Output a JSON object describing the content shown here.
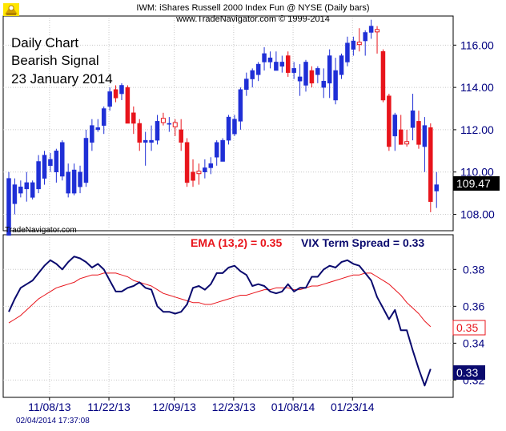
{
  "header": {
    "title": "IWM:  iShares Russell 2000 Index Fun @ NYSE  (Daily bars)",
    "subtitle": "www.TradeNavigator.com © 1999-2014",
    "logo_icon": "trade-navigator-logo-icon"
  },
  "annotation": {
    "line1": "Daily Chart",
    "line2": "Bearish Signal",
    "line3": "23 January 2014"
  },
  "watermark": "TradeNavigator.com",
  "timestamp": "02/04/2014  17:37:08",
  "colors": {
    "up": "#1f2fd6",
    "down": "#e8141b",
    "ema": "#e8141b",
    "vix": "#0a0a6e",
    "axis_text": "#000080",
    "grid": "#c8c8c8"
  },
  "chart_data": [
    {
      "type": "candlestick",
      "title": "",
      "y_ticks": [
        "116.00",
        "114.00",
        "112.00",
        "110.00",
        "108.00"
      ],
      "ylim": [
        107.3,
        117.3
      ],
      "last_price_label": "109.47",
      "x_tick_labels": [
        "11/08/13",
        "11/22/13",
        "12/09/13",
        "12/23/13",
        "01/08/14",
        "01/23/14"
      ],
      "x_tick_index": [
        2,
        12,
        23,
        33,
        43,
        53
      ],
      "candles": [
        {
          "o": 107.0,
          "h": 110.0,
          "l": 107.0,
          "c": 109.7
        },
        {
          "o": 108.5,
          "h": 109.7,
          "l": 108.0,
          "c": 109.4
        },
        {
          "o": 109.0,
          "h": 109.6,
          "l": 108.8,
          "c": 109.3
        },
        {
          "o": 109.2,
          "h": 110.0,
          "l": 108.6,
          "c": 109.5
        },
        {
          "o": 108.8,
          "h": 109.6,
          "l": 108.7,
          "c": 109.5
        },
        {
          "o": 109.2,
          "h": 110.8,
          "l": 109.0,
          "c": 110.5
        },
        {
          "o": 109.7,
          "h": 111.0,
          "l": 109.4,
          "c": 110.8
        },
        {
          "o": 110.3,
          "h": 110.9,
          "l": 110.0,
          "c": 110.6
        },
        {
          "o": 110.0,
          "h": 111.1,
          "l": 109.5,
          "c": 111.0
        },
        {
          "o": 109.8,
          "h": 111.5,
          "l": 109.6,
          "c": 111.4
        },
        {
          "o": 109.0,
          "h": 110.4,
          "l": 108.8,
          "c": 110.0
        },
        {
          "o": 109.0,
          "h": 110.4,
          "l": 108.9,
          "c": 110.1
        },
        {
          "o": 109.3,
          "h": 110.3,
          "l": 109.0,
          "c": 110.0
        },
        {
          "o": 109.5,
          "h": 112.0,
          "l": 109.3,
          "c": 111.6
        },
        {
          "o": 111.4,
          "h": 112.5,
          "l": 111.0,
          "c": 112.2
        },
        {
          "o": 112.0,
          "h": 112.5,
          "l": 111.9,
          "c": 112.1
        },
        {
          "o": 112.2,
          "h": 113.1,
          "l": 111.8,
          "c": 113.0
        },
        {
          "o": 113.1,
          "h": 114.0,
          "l": 112.9,
          "c": 113.8
        },
        {
          "o": 113.9,
          "h": 114.1,
          "l": 113.3,
          "c": 113.5
        },
        {
          "o": 113.7,
          "h": 114.2,
          "l": 113.4,
          "c": 114.1
        },
        {
          "o": 114.0,
          "h": 114.1,
          "l": 112.3,
          "c": 112.3
        },
        {
          "o": 112.8,
          "h": 113.1,
          "l": 111.8,
          "c": 112.3
        },
        {
          "o": 112.3,
          "h": 112.5,
          "l": 111.0,
          "c": 111.4
        },
        {
          "o": 111.4,
          "h": 111.9,
          "l": 110.3,
          "c": 111.5
        },
        {
          "o": 111.4,
          "h": 112.2,
          "l": 111.0,
          "c": 111.5
        },
        {
          "o": 111.5,
          "h": 112.7,
          "l": 111.3,
          "c": 112.4
        },
        {
          "o": 112.5,
          "h": 112.8,
          "l": 112.2,
          "c": 112.3
        },
        {
          "o": 112.3,
          "h": 112.6,
          "l": 111.9,
          "c": 112.3
        },
        {
          "o": 112.3,
          "h": 112.5,
          "l": 111.7,
          "c": 112.1
        },
        {
          "o": 112.0,
          "h": 112.5,
          "l": 111.0,
          "c": 111.4
        },
        {
          "o": 111.4,
          "h": 111.6,
          "l": 109.3,
          "c": 109.5
        },
        {
          "o": 110.0,
          "h": 110.6,
          "l": 109.3,
          "c": 109.6
        },
        {
          "o": 110.0,
          "h": 110.4,
          "l": 109.4,
          "c": 109.9
        },
        {
          "o": 110.0,
          "h": 110.6,
          "l": 109.7,
          "c": 110.2
        },
        {
          "o": 110.2,
          "h": 110.7,
          "l": 109.9,
          "c": 110.4
        },
        {
          "o": 110.7,
          "h": 111.5,
          "l": 110.3,
          "c": 111.4
        },
        {
          "o": 110.5,
          "h": 111.6,
          "l": 110.5,
          "c": 111.5
        },
        {
          "o": 111.5,
          "h": 112.7,
          "l": 111.3,
          "c": 112.6
        },
        {
          "o": 111.8,
          "h": 112.7,
          "l": 111.7,
          "c": 112.5
        },
        {
          "o": 112.4,
          "h": 114.0,
          "l": 112.0,
          "c": 113.9
        },
        {
          "o": 113.9,
          "h": 114.7,
          "l": 113.6,
          "c": 114.4
        },
        {
          "o": 114.4,
          "h": 114.9,
          "l": 114.0,
          "c": 114.8
        },
        {
          "o": 114.6,
          "h": 115.2,
          "l": 114.3,
          "c": 115.1
        },
        {
          "o": 115.2,
          "h": 115.9,
          "l": 114.8,
          "c": 115.6
        },
        {
          "o": 115.2,
          "h": 115.7,
          "l": 114.9,
          "c": 115.4
        },
        {
          "o": 114.8,
          "h": 115.7,
          "l": 114.8,
          "c": 115.2
        },
        {
          "o": 115.0,
          "h": 115.5,
          "l": 114.7,
          "c": 115.2
        },
        {
          "o": 115.5,
          "h": 115.7,
          "l": 114.5,
          "c": 114.7
        },
        {
          "o": 114.7,
          "h": 115.2,
          "l": 114.4,
          "c": 114.9
        },
        {
          "o": 114.3,
          "h": 115.1,
          "l": 113.6,
          "c": 114.5
        },
        {
          "o": 114.1,
          "h": 115.3,
          "l": 113.8,
          "c": 115.2
        },
        {
          "o": 114.8,
          "h": 115.0,
          "l": 114.0,
          "c": 114.2
        },
        {
          "o": 114.6,
          "h": 115.0,
          "l": 114.2,
          "c": 114.9
        },
        {
          "o": 114.0,
          "h": 114.9,
          "l": 113.5,
          "c": 114.3
        },
        {
          "o": 114.2,
          "h": 115.8,
          "l": 113.5,
          "c": 115.5
        },
        {
          "o": 113.4,
          "h": 115.4,
          "l": 113.2,
          "c": 114.8
        },
        {
          "o": 114.6,
          "h": 115.6,
          "l": 114.4,
          "c": 115.5
        },
        {
          "o": 115.2,
          "h": 116.4,
          "l": 115.0,
          "c": 116.1
        },
        {
          "o": 115.8,
          "h": 116.4,
          "l": 115.5,
          "c": 116.2
        },
        {
          "o": 116.1,
          "h": 116.8,
          "l": 115.7,
          "c": 116.0
        },
        {
          "o": 116.2,
          "h": 116.7,
          "l": 115.5,
          "c": 116.6
        },
        {
          "o": 116.6,
          "h": 117.2,
          "l": 116.3,
          "c": 116.9
        },
        {
          "o": 116.7,
          "h": 116.9,
          "l": 115.6,
          "c": 116.6
        },
        {
          "o": 115.7,
          "h": 115.8,
          "l": 113.3,
          "c": 113.4
        },
        {
          "o": 113.6,
          "h": 113.7,
          "l": 111.0,
          "c": 111.2
        },
        {
          "o": 111.7,
          "h": 112.8,
          "l": 111.0,
          "c": 112.7
        },
        {
          "o": 112.0,
          "h": 112.7,
          "l": 111.3,
          "c": 111.3
        },
        {
          "o": 111.4,
          "h": 112.0,
          "l": 111.2,
          "c": 111.3
        },
        {
          "o": 112.1,
          "h": 113.7,
          "l": 111.5,
          "c": 112.9
        },
        {
          "o": 112.4,
          "h": 112.9,
          "l": 111.1,
          "c": 111.3
        },
        {
          "o": 111.2,
          "h": 112.6,
          "l": 110.0,
          "c": 112.2
        },
        {
          "o": 112.1,
          "h": 112.3,
          "l": 108.1,
          "c": 108.6
        },
        {
          "o": 109.1,
          "h": 110.0,
          "l": 108.3,
          "c": 109.4
        }
      ]
    },
    {
      "type": "line",
      "title": "",
      "y_ticks": [
        "0.38",
        "0.36",
        "0.34",
        "0.32"
      ],
      "ylim": [
        0.3115,
        0.3975
      ],
      "series": [
        {
          "name": "EMA (13,2) = 0.35",
          "color": "#e8141b",
          "values": [
            0.351,
            0.353,
            0.355,
            0.358,
            0.361,
            0.364,
            0.366,
            0.368,
            0.37,
            0.371,
            0.372,
            0.373,
            0.375,
            0.376,
            0.377,
            0.377,
            0.378,
            0.378,
            0.378,
            0.377,
            0.376,
            0.374,
            0.373,
            0.372,
            0.371,
            0.369,
            0.367,
            0.366,
            0.365,
            0.364,
            0.363,
            0.362,
            0.362,
            0.361,
            0.361,
            0.362,
            0.363,
            0.364,
            0.365,
            0.366,
            0.366,
            0.367,
            0.368,
            0.369,
            0.369,
            0.37,
            0.37,
            0.37,
            0.369,
            0.369,
            0.37,
            0.371,
            0.371,
            0.372,
            0.373,
            0.374,
            0.375,
            0.376,
            0.377,
            0.377,
            0.378,
            0.378,
            0.376,
            0.374,
            0.372,
            0.369,
            0.366,
            0.362,
            0.359,
            0.356,
            0.352,
            0.349
          ]
        },
        {
          "name": "VIX Term Spread = 0.33",
          "color": "#0a0a6e",
          "values": [
            0.357,
            0.364,
            0.37,
            0.372,
            0.374,
            0.378,
            0.382,
            0.385,
            0.383,
            0.38,
            0.384,
            0.387,
            0.386,
            0.384,
            0.381,
            0.383,
            0.38,
            0.374,
            0.368,
            0.368,
            0.37,
            0.371,
            0.373,
            0.37,
            0.369,
            0.36,
            0.357,
            0.357,
            0.356,
            0.357,
            0.361,
            0.37,
            0.371,
            0.369,
            0.372,
            0.378,
            0.378,
            0.381,
            0.382,
            0.379,
            0.377,
            0.371,
            0.372,
            0.371,
            0.368,
            0.367,
            0.368,
            0.372,
            0.368,
            0.37,
            0.37,
            0.376,
            0.376,
            0.38,
            0.382,
            0.381,
            0.384,
            0.385,
            0.383,
            0.382,
            0.378,
            0.374,
            0.365,
            0.359,
            0.353,
            0.358,
            0.347,
            0.347,
            0.336,
            0.326,
            0.317,
            0.326
          ]
        }
      ]
    }
  ]
}
